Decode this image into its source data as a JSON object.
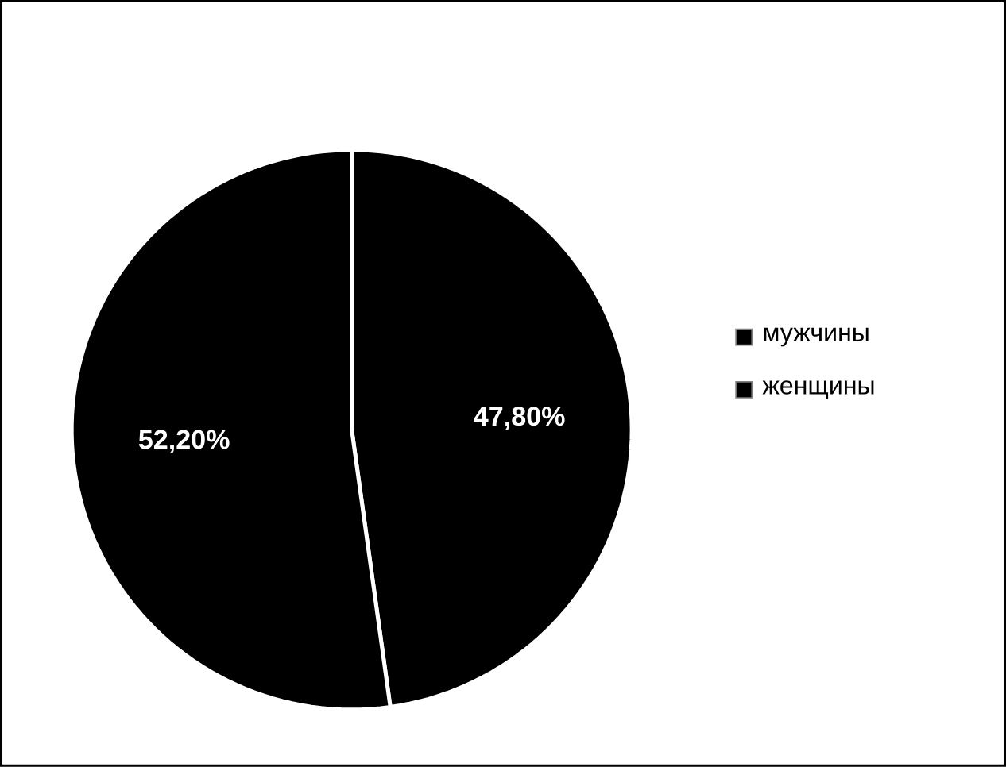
{
  "chart_data": {
    "type": "pie",
    "categories": [
      "мужчины",
      "женщины"
    ],
    "values": [
      47.8,
      52.2
    ],
    "colors": [
      "#000000",
      "#000000"
    ],
    "value_labels": [
      "47,80%",
      "52,20%"
    ],
    "legend": "right"
  }
}
